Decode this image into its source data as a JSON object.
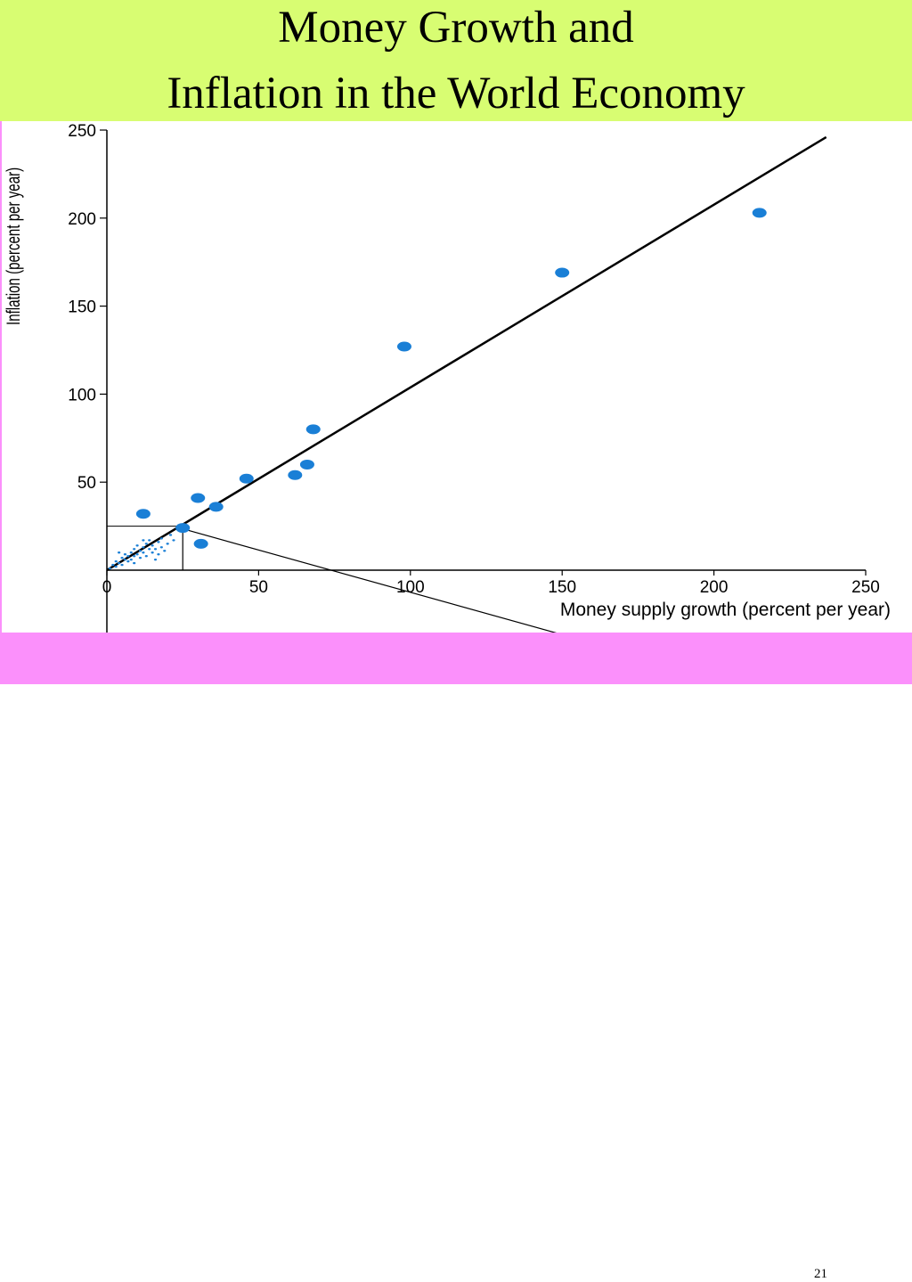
{
  "slide": {
    "title_line_1": "Money Growth and",
    "title_line_2": "Inflation in the World Economy",
    "page_number": "21",
    "colors": {
      "title_band": "#d8fd72",
      "footer_band": "#fb90fb",
      "points": "#1a7fd6",
      "line": "#000000"
    }
  },
  "chart_data": {
    "type": "scatter",
    "title": "",
    "xlabel": "Money supply growth (percent per year)",
    "ylabel": "Inflation (percent per year)",
    "xlim": [
      0,
      250
    ],
    "ylim": [
      0,
      250
    ],
    "x_ticks": [
      0,
      50,
      100,
      150,
      200,
      250
    ],
    "y_ticks": [
      50,
      100,
      150,
      200,
      250
    ],
    "x_tick_labels": [
      "0",
      "50",
      "100",
      "150",
      "200",
      "250"
    ],
    "y_tick_labels": [
      "50",
      "100",
      "150",
      "200",
      "250"
    ],
    "grid": false,
    "legend": "none",
    "reference_line": {
      "x": [
        0,
        237
      ],
      "y": [
        0,
        246
      ]
    },
    "series": [
      {
        "values": [
          {
            "x": 12,
            "y": 32
          },
          {
            "x": 25,
            "y": 24
          },
          {
            "x": 30,
            "y": 41
          },
          {
            "x": 31,
            "y": 15
          },
          {
            "x": 36,
            "y": 36
          },
          {
            "x": 46,
            "y": 52
          },
          {
            "x": 62,
            "y": 54
          },
          {
            "x": 66,
            "y": 60
          },
          {
            "x": 68,
            "y": 80
          },
          {
            "x": 98,
            "y": 127
          },
          {
            "x": 150,
            "y": 169
          },
          {
            "x": 215,
            "y": 203
          }
        ]
      },
      {
        "values": [
          {
            "x": 1,
            "y": 1
          },
          {
            "x": 2,
            "y": 3
          },
          {
            "x": 3,
            "y": 2
          },
          {
            "x": 3,
            "y": 5
          },
          {
            "x": 4,
            "y": 4
          },
          {
            "x": 5,
            "y": 7
          },
          {
            "x": 5,
            "y": 3
          },
          {
            "x": 6,
            "y": 6
          },
          {
            "x": 6,
            "y": 9
          },
          {
            "x": 7,
            "y": 5
          },
          {
            "x": 7,
            "y": 8
          },
          {
            "x": 8,
            "y": 10
          },
          {
            "x": 8,
            "y": 6
          },
          {
            "x": 9,
            "y": 12
          },
          {
            "x": 9,
            "y": 8
          },
          {
            "x": 10,
            "y": 9
          },
          {
            "x": 10,
            "y": 14
          },
          {
            "x": 11,
            "y": 11
          },
          {
            "x": 11,
            "y": 7
          },
          {
            "x": 12,
            "y": 13
          },
          {
            "x": 12,
            "y": 10
          },
          {
            "x": 13,
            "y": 15
          },
          {
            "x": 13,
            "y": 8
          },
          {
            "x": 14,
            "y": 12
          },
          {
            "x": 14,
            "y": 17
          },
          {
            "x": 15,
            "y": 10
          },
          {
            "x": 15,
            "y": 14
          },
          {
            "x": 16,
            "y": 12
          },
          {
            "x": 17,
            "y": 16
          },
          {
            "x": 17,
            "y": 9
          },
          {
            "x": 18,
            "y": 13
          },
          {
            "x": 18,
            "y": 18
          },
          {
            "x": 19,
            "y": 11
          },
          {
            "x": 20,
            "y": 15
          },
          {
            "x": 21,
            "y": 20
          },
          {
            "x": 22,
            "y": 17
          },
          {
            "x": 4,
            "y": 10
          },
          {
            "x": 9,
            "y": 4
          },
          {
            "x": 12,
            "y": 17
          },
          {
            "x": 16,
            "y": 6
          }
        ]
      }
    ],
    "zoom_box": {
      "x": [
        0,
        25
      ],
      "y": [
        0,
        25
      ]
    }
  }
}
